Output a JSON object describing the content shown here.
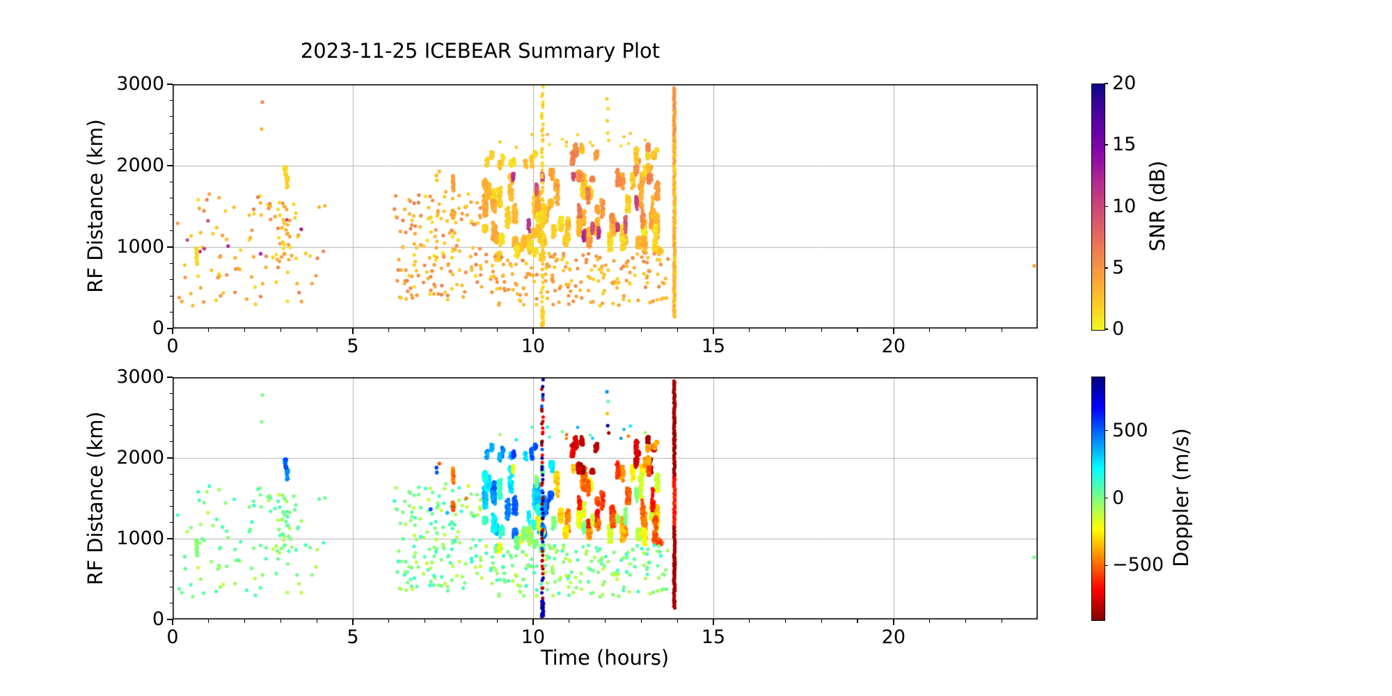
{
  "title": "2023-11-25 ICEBEAR Summary Plot",
  "colors": {
    "background": "#ffffff",
    "spine": "#000000",
    "grid": "#b0b0b0",
    "text": "#000000"
  },
  "axes": {
    "x": {
      "label": "Time (hours)",
      "min": 0,
      "max": 24,
      "major_ticks": [
        0,
        5,
        10,
        15,
        20
      ],
      "minor_step_hours": 1
    },
    "y": {
      "label": "RF Distance (km)",
      "min": 0,
      "max": 3000,
      "major_ticks": [
        0,
        1000,
        2000,
        3000
      ],
      "minor_step_km": 200
    },
    "grid": "on"
  },
  "panels": [
    {
      "name": "snr-panel",
      "colorbar": {
        "label": "SNR (dB)",
        "min": 0,
        "max": 20,
        "ticks": [
          0,
          5,
          10,
          15,
          20
        ],
        "colormap": "plasma",
        "reverse": true
      }
    },
    {
      "name": "doppler-panel",
      "colorbar": {
        "label": "Doppler (m/s)",
        "min": -900,
        "max": 900,
        "ticks": [
          500,
          0,
          -500
        ],
        "colormap": "jet",
        "reverse": true
      }
    }
  ],
  "colormaps": {
    "plasma": [
      [
        0,
        "#0d0887"
      ],
      [
        0.1,
        "#41049d"
      ],
      [
        0.2,
        "#6a00a8"
      ],
      [
        0.3,
        "#8f0da4"
      ],
      [
        0.4,
        "#b12a90"
      ],
      [
        0.5,
        "#cc4778"
      ],
      [
        0.6,
        "#e16462"
      ],
      [
        0.7,
        "#f2844b"
      ],
      [
        0.8,
        "#fca636"
      ],
      [
        0.9,
        "#fcce25"
      ],
      [
        1,
        "#f0f921"
      ]
    ],
    "jet": [
      [
        0,
        "#000080"
      ],
      [
        0.125,
        "#0000ff"
      ],
      [
        0.375,
        "#00ffff"
      ],
      [
        0.625,
        "#ffff00"
      ],
      [
        0.875,
        "#ff0000"
      ],
      [
        1,
        "#800000"
      ]
    ]
  },
  "chart_data": {
    "type": "scatter",
    "description": "Two stacked scatter panels sharing identical point positions (Time vs RF Distance). Top panel colored by SNR (plasma reversed, 0-20 dB); bottom panel colored by Doppler velocity (jet reversed, approx -900 to +900 m/s). Sparse low-SNR near-zero-Doppler echoes 0-4.3 h and 6.2-8.6 h; dense E-region scatter storm 8.6-13.6 h (positive Doppler/cyan before ~10.5 h, negative Doppler/yellow-orange and strongly negative/maroon after); dotted full-height meteor/interference column at 10.25 h; solid interference line at 13.92 h; lone echo near 23.9 h.",
    "seed": 42,
    "clusters": [
      {
        "name": "early-scatter",
        "mode": "uniform",
        "n": 95,
        "t": [
          0.1,
          4.25
        ],
        "rf": [
          260,
          1660
        ],
        "snr": [
          1,
          6.5
        ],
        "dop": [
          -130,
          140
        ],
        "size": 2.6
      },
      {
        "name": "early-high-snr-dots",
        "mode": "uniform",
        "n": 8,
        "t": [
          0.3,
          3.6
        ],
        "rf": [
          900,
          1450
        ],
        "snr": [
          8,
          14
        ],
        "dop": [
          -150,
          100
        ],
        "size": 2.6
      },
      {
        "name": "streak-t0.65",
        "mode": "streaks",
        "n": 2,
        "len": 10,
        "t": [
          0.62,
          0.68
        ],
        "tw": 0.05,
        "rf": [
          790,
          1010
        ],
        "step": 30,
        "snr": [
          1,
          3
        ],
        "dop": [
          -80,
          80
        ],
        "size": 2.6
      },
      {
        "name": "streak-t3.2-upper",
        "mode": "streaks",
        "n": 3,
        "len": 12,
        "t": [
          3.12,
          3.22
        ],
        "tw": 0.05,
        "rf": [
          1560,
          1980
        ],
        "step": 40,
        "snr": [
          1,
          2.5
        ],
        "dop": [
          300,
          620
        ],
        "size": 2.8
      },
      {
        "name": "scatter-t3",
        "mode": "uniform",
        "n": 28,
        "t": [
          2.85,
          3.5
        ],
        "rf": [
          800,
          1500
        ],
        "snr": [
          1,
          5
        ],
        "dop": [
          -100,
          130
        ],
        "size": 2.6
      },
      {
        "name": "mid-scatter",
        "mode": "uniform",
        "n": 160,
        "t": [
          6.15,
          8.6
        ],
        "rf": [
          330,
          1680
        ],
        "snr": [
          1,
          6.5
        ],
        "dop": [
          -140,
          140
        ],
        "size": 2.6
      },
      {
        "name": "mid-orange-streak-t7.8",
        "mode": "streaks",
        "n": 2,
        "len": 16,
        "t": [
          7.78,
          7.84
        ],
        "tw": 0.03,
        "rf": [
          1250,
          1900
        ],
        "step": 45,
        "snr": [
          2,
          5
        ],
        "dop": [
          -620,
          -420
        ],
        "size": 2.8
      },
      {
        "name": "mid-blue-dots",
        "mode": "points",
        "size": 2.8,
        "pts": [
          [
            7.32,
            1880,
            3,
            560
          ],
          [
            7.33,
            1820,
            2,
            520
          ],
          [
            7.4,
            1930,
            3,
            -500
          ],
          [
            7.16,
            1365,
            2,
            540
          ],
          [
            7.62,
            1320,
            2,
            330
          ],
          [
            8.15,
            1500,
            2,
            -450
          ]
        ]
      },
      {
        "name": "band-cyan",
        "mode": "streaks",
        "n": 26,
        "len": 40,
        "t": [
          8.62,
          10.55
        ],
        "tw": 0.09,
        "rf": [
          1020,
          1950
        ],
        "step": 38,
        "snr": [
          1,
          4
        ],
        "dop": [
          140,
          560
        ],
        "size": 2.8
      },
      {
        "name": "band-green-low",
        "mode": "streaks",
        "n": 16,
        "len": 28,
        "t": [
          8.62,
          10.6
        ],
        "tw": 0.1,
        "rf": [
          840,
          1260
        ],
        "step": 32,
        "snr": [
          1,
          3
        ],
        "dop": [
          -220,
          160
        ],
        "size": 2.6
      },
      {
        "name": "band-yellow-right",
        "mode": "streaks",
        "n": 30,
        "len": 40,
        "t": [
          10.45,
          13.6
        ],
        "tw": 0.09,
        "rf": [
          930,
          1900
        ],
        "step": 42,
        "snr": [
          1,
          5
        ],
        "dop": [
          -560,
          -120
        ],
        "size": 2.8
      },
      {
        "name": "band-maroon-top",
        "mode": "streaks",
        "n": 14,
        "len": 24,
        "t": [
          11.0,
          13.5
        ],
        "tw": 0.07,
        "rf": [
          1820,
          2260
        ],
        "step": 32,
        "snr": [
          2,
          6.5
        ],
        "dop": [
          -900,
          -720
        ],
        "size": 2.8
      },
      {
        "name": "band-orange",
        "mode": "streaks",
        "n": 13,
        "len": 26,
        "t": [
          10.6,
          13.45
        ],
        "tw": 0.07,
        "rf": [
          1150,
          1950
        ],
        "step": 42,
        "snr": [
          3,
          7
        ],
        "dop": [
          -720,
          -460
        ],
        "size": 2.6
      },
      {
        "name": "band-high-snr-streaks",
        "mode": "streaks",
        "n": 11,
        "len": 26,
        "t": [
          9.1,
          13.4
        ],
        "tw": 0.05,
        "rf": [
          1050,
          1900
        ],
        "step": 48,
        "snr": [
          7,
          12
        ],
        "dop": [
          -500,
          250
        ],
        "size": 2.4
      },
      {
        "name": "band-top-fringe",
        "mode": "streaks",
        "n": 9,
        "len": 16,
        "t": [
          8.68,
          10.4
        ],
        "tw": 0.06,
        "rf": [
          1870,
          2170
        ],
        "step": 28,
        "snr": [
          1,
          3
        ],
        "dop": [
          200,
          600
        ],
        "size": 2.6
      },
      {
        "name": "band-tail-top-yellow",
        "mode": "streaks",
        "n": 5,
        "len": 14,
        "t": [
          13.05,
          13.45
        ],
        "tw": 0.05,
        "rf": [
          1900,
          2200
        ],
        "step": 30,
        "snr": [
          1,
          3
        ],
        "dop": [
          -480,
          -260
        ],
        "size": 2.8
      },
      {
        "name": "band-below-scatter",
        "mode": "uniform",
        "n": 190,
        "t": [
          8.6,
          13.8
        ],
        "rf": [
          280,
          920
        ],
        "snr": [
          1.5,
          6
        ],
        "dop": [
          -130,
          130
        ],
        "size": 2.6
      },
      {
        "name": "band-above-dots",
        "mode": "uniform",
        "n": 16,
        "t": [
          8.7,
          13.6
        ],
        "rf": [
          2200,
          2400
        ],
        "snr": [
          1,
          3.5
        ],
        "dop": [
          -500,
          500
        ],
        "size": 2.4
      },
      {
        "name": "high-outlier-dots",
        "mode": "points",
        "size": 2.6,
        "pts": [
          [
            2.49,
            2780,
            6,
            20
          ],
          [
            2.47,
            2450,
            3,
            10
          ],
          [
            12.05,
            2820,
            2,
            420
          ],
          [
            12.06,
            2550,
            2,
            -330
          ],
          [
            12.07,
            2400,
            1.5,
            850
          ],
          [
            12.1,
            2310,
            2,
            -850
          ],
          [
            12.08,
            2700,
            1.5,
            60
          ],
          [
            23.9,
            770,
            4.5,
            20
          ]
        ]
      },
      {
        "name": "vline-t10.25",
        "mode": "vline",
        "n": 62,
        "t": [
          10.24,
          10.28
        ],
        "rf": [
          30,
          2950
        ],
        "jitter": 25,
        "snr": [
          1,
          2.5
        ],
        "dop": [
          -880,
          -800
        ],
        "dop_choices": [
          850,
          -850,
          -680,
          520,
          -780,
          820,
          870,
          -860
        ],
        "size": 2.5
      },
      {
        "name": "blob-t10.25-low",
        "mode": "uniform",
        "n": 22,
        "t": [
          10.24,
          10.29
        ],
        "rf": [
          30,
          260
        ],
        "snr": [
          1,
          2.5
        ],
        "dop": [
          780,
          880
        ],
        "size": 2.6
      },
      {
        "name": "vline-t13.92",
        "mode": "vline",
        "n": 240,
        "t": [
          13.9,
          13.94
        ],
        "rf": [
          150,
          2950
        ],
        "jitter": 8,
        "snr": [
          1.5,
          4.5
        ],
        "snr_seg": [
          {
            "rf": [
              2300,
              3000
            ],
            "v": [
              3.5,
              6
            ]
          }
        ],
        "dop": [
          -880,
          -800
        ],
        "dop_seg": [
          {
            "rf": [
              1180,
              1780
            ],
            "v": [
              -700,
              -560
            ]
          }
        ],
        "size": 2.5
      }
    ]
  }
}
